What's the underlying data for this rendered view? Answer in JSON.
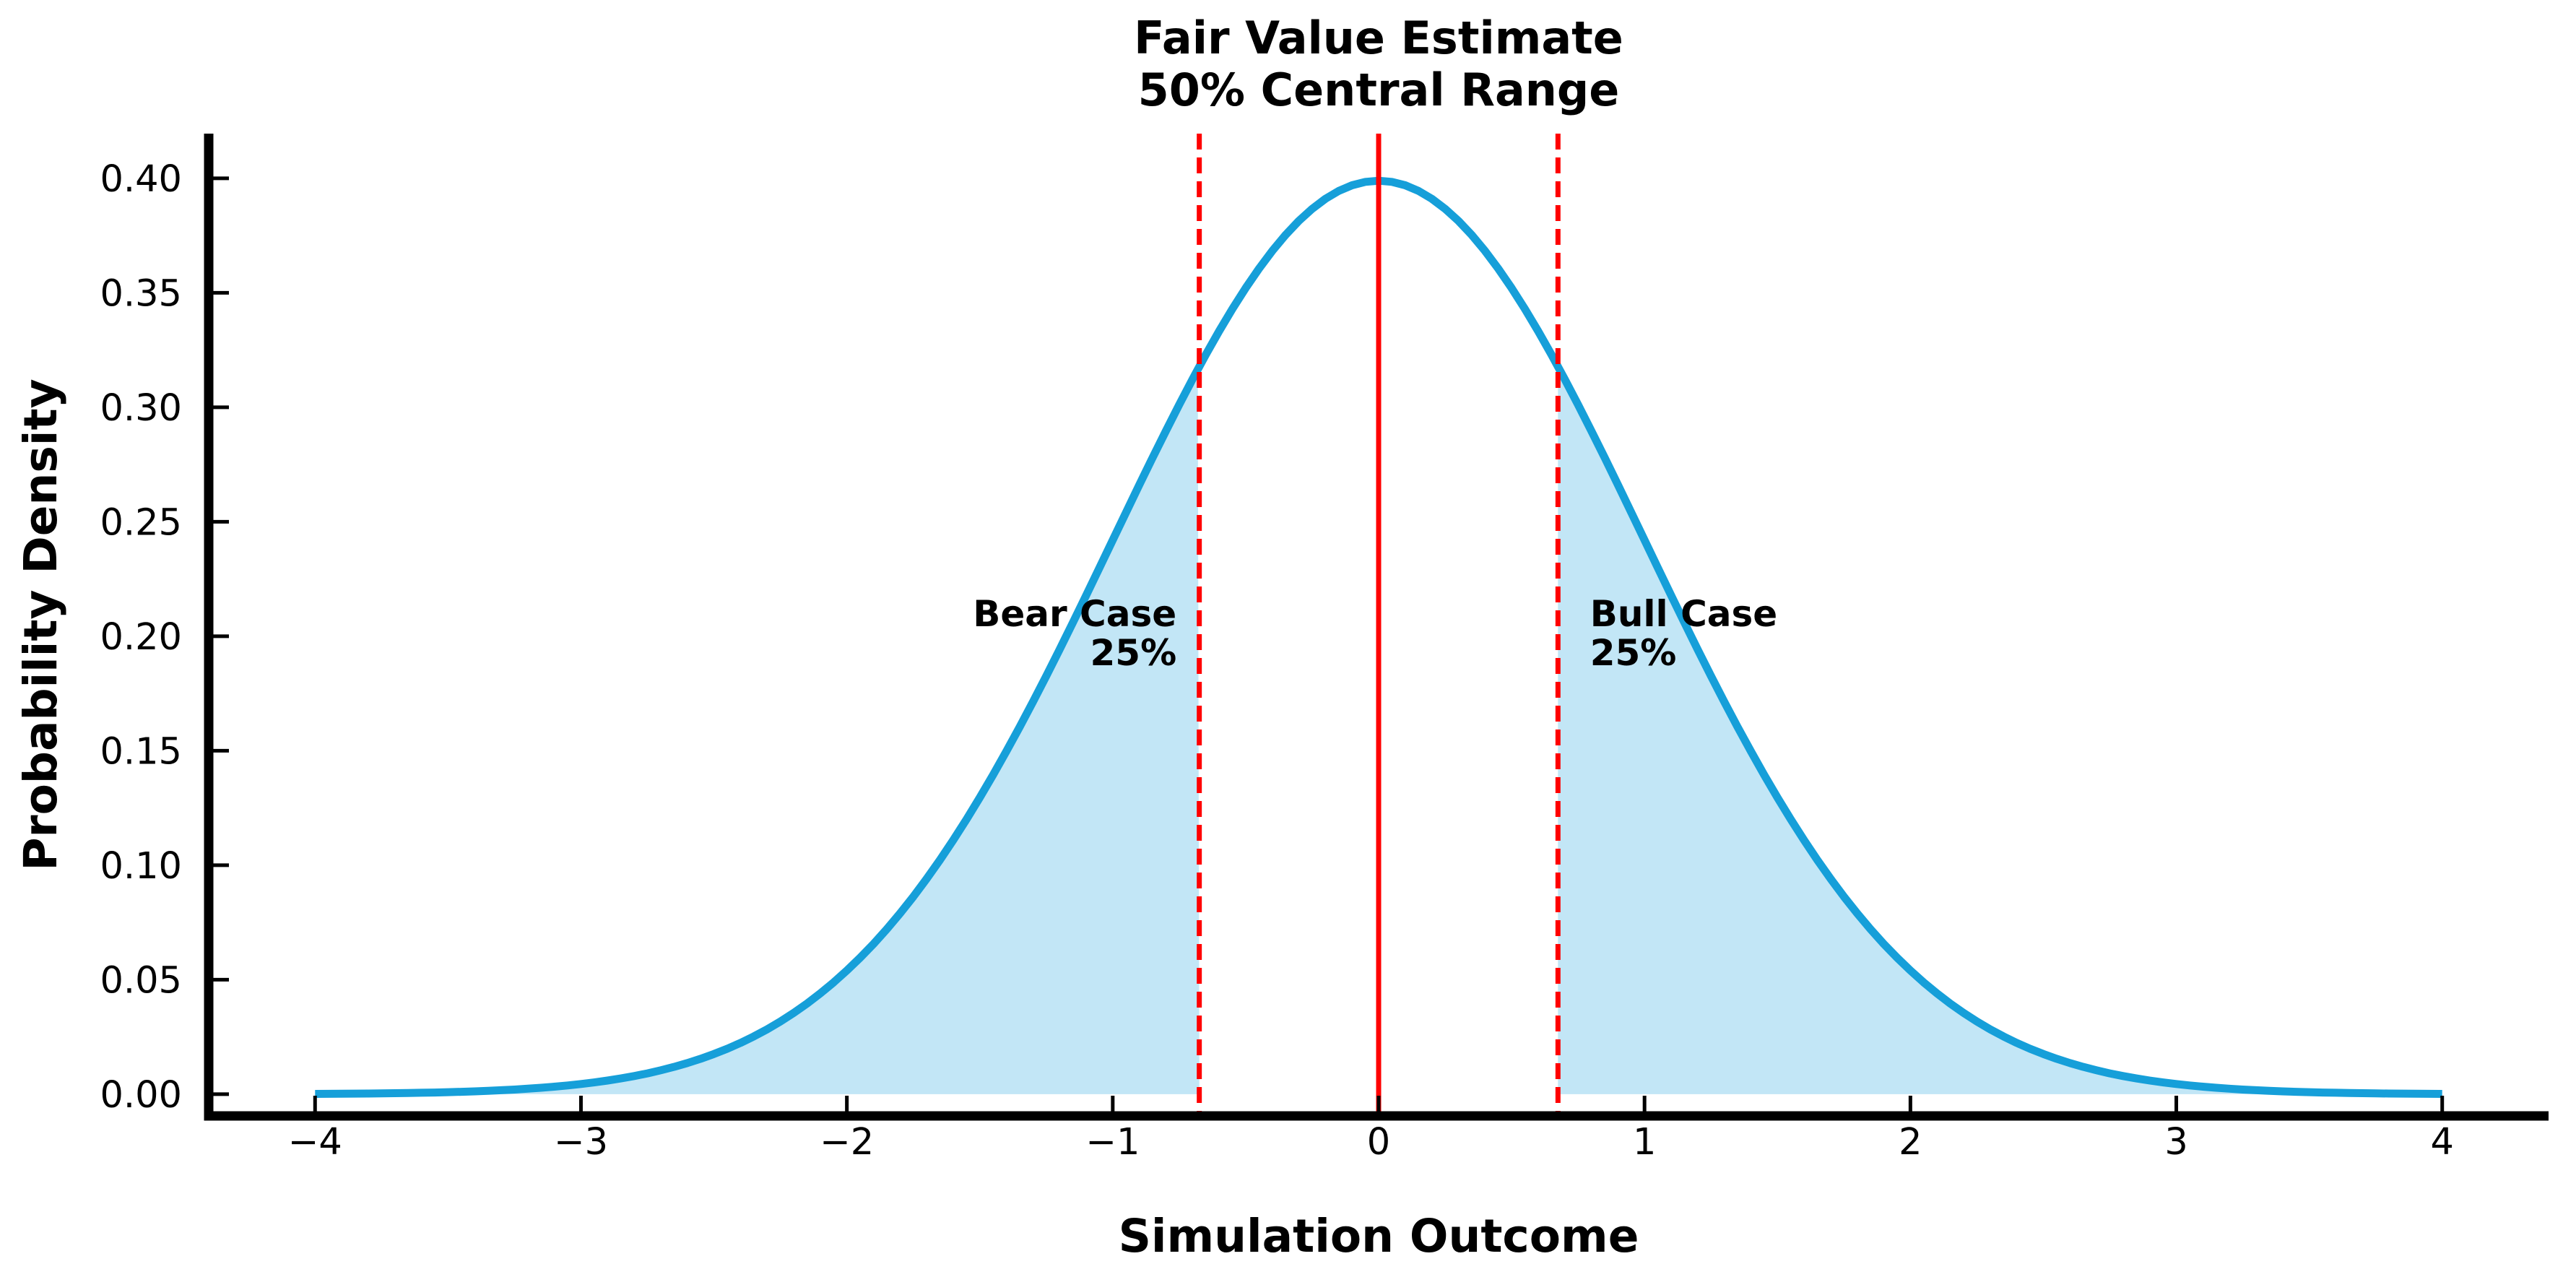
{
  "chart_data": {
    "type": "area",
    "title_line1": "Fair Value Estimate",
    "title_line2": "50% Central Range",
    "xlabel": "Simulation Outcome",
    "ylabel": "Probability Density",
    "xlim": [
      -4.4,
      4.4
    ],
    "ylim": [
      -0.0095,
      0.4195
    ],
    "x_domain": [
      -4,
      4
    ],
    "grid": false,
    "legend": "none",
    "distribution": {
      "name": "normal",
      "mean": 0,
      "sigma": 1,
      "peak_density": 0.3989
    },
    "central_range": {
      "lower": -0.6745,
      "upper": 0.6745,
      "center": 0,
      "coverage": "50%"
    },
    "xtick_values": [
      -4,
      -3,
      -2,
      -1,
      0,
      1,
      2,
      3,
      4
    ],
    "xtick_labels": [
      "−4",
      "−3",
      "−2",
      "−1",
      "0",
      "1",
      "2",
      "3",
      "4"
    ],
    "ytick_values": [
      0.0,
      0.05,
      0.1,
      0.15,
      0.2,
      0.25,
      0.3,
      0.35,
      0.4
    ],
    "ytick_labels": [
      "0.00",
      "0.05",
      "0.10",
      "0.15",
      "0.20",
      "0.25",
      "0.30",
      "0.35",
      "0.40"
    ],
    "series": [
      {
        "name": "standard-normal-pdf",
        "x": [
          -4,
          -3.75,
          -3.5,
          -3.25,
          -3,
          -2.75,
          -2.5,
          -2.25,
          -2,
          -1.75,
          -1.5,
          -1.25,
          -1,
          -0.75,
          -0.5,
          -0.25,
          0,
          0.25,
          0.5,
          0.75,
          1,
          1.25,
          1.5,
          1.75,
          2,
          2.25,
          2.5,
          2.75,
          3,
          3.25,
          3.5,
          3.75,
          4
        ],
        "y": [
          0.00013,
          0.00035,
          0.00087,
          0.00203,
          0.00443,
          0.00913,
          0.01753,
          0.03174,
          0.05399,
          0.08628,
          0.12952,
          0.18265,
          0.24197,
          0.30114,
          0.35207,
          0.38667,
          0.39894,
          0.38667,
          0.35207,
          0.30114,
          0.24197,
          0.18265,
          0.12952,
          0.08628,
          0.05399,
          0.03174,
          0.01753,
          0.00913,
          0.00443,
          0.00203,
          0.00087,
          0.00035,
          0.00013
        ]
      }
    ],
    "annotations": {
      "bear": {
        "line1": "Bear Case",
        "line2": "25%",
        "x": -0.76,
        "y": 0.2,
        "align": "right"
      },
      "bull": {
        "line1": "Bull Case",
        "line2": "25%",
        "x": 0.795,
        "y": 0.2,
        "align": "left"
      }
    },
    "colors": {
      "curve": "#169fd9",
      "fill": "#c2e6f6",
      "reference_lines": "#ff0000",
      "axis": "#000000",
      "text": "#000000"
    }
  }
}
